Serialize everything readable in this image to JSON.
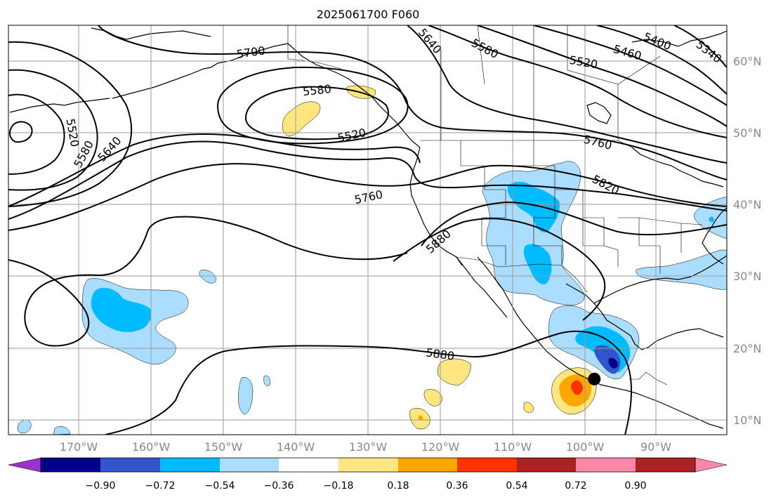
{
  "title": "2025061700 F060",
  "lon_ticks": [
    "170°W",
    "160°W",
    "150°W",
    "140°W",
    "130°W",
    "120°W",
    "110°W",
    "100°W",
    "90°W"
  ],
  "lat_ticks": [
    "60°N",
    "50°N",
    "40°N",
    "30°N",
    "20°N",
    "10°N"
  ],
  "contour_labels": [
    "5700",
    "5640",
    "5580",
    "5460",
    "5400",
    "5340",
    "5520",
    "5580",
    "5520",
    "5520",
    "5580",
    "5640",
    "5760",
    "5760",
    "5820",
    "5880",
    "5880"
  ],
  "colorbar": {
    "ticks": [
      "−0.90",
      "−0.72",
      "−0.54",
      "−0.36",
      "−0.18",
      "0.18",
      "0.36",
      "0.54",
      "0.72",
      "0.90"
    ],
    "colors": [
      "#9933cc",
      "#000088",
      "#3355cc",
      "#00bbff",
      "#aaddff",
      "#ffffff",
      "#ffe680",
      "#ffa500",
      "#ff3300",
      "#aa2222",
      "#ff88aa"
    ]
  },
  "colors": {
    "grid": "#9a9a9a",
    "tick_label": "#888888",
    "marker": "#000000"
  },
  "marker": {
    "lon": -98.5,
    "lat": 15.7
  }
}
